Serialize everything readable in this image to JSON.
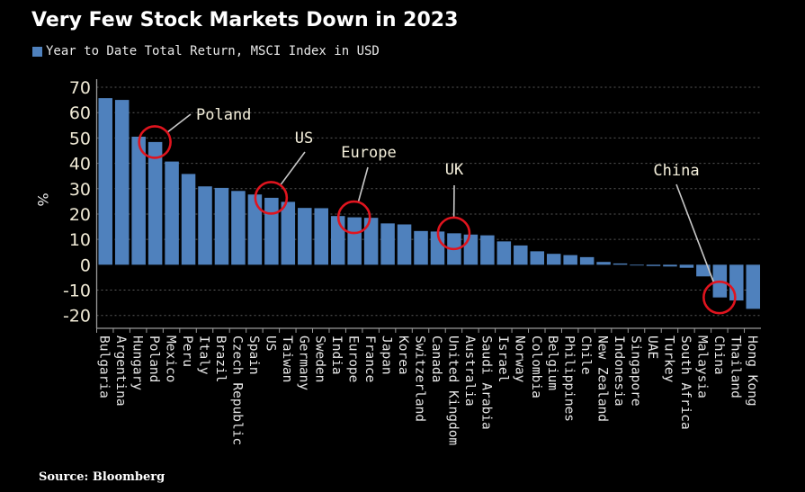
{
  "header": {
    "title": "Very Few Stock Markets Down in 2023",
    "legend_label": "Year to Date Total Return, MSCI Index in USD"
  },
  "footer": {
    "source": "Source: Bloomberg"
  },
  "colors": {
    "background": "#000000",
    "bar": "#4f81bd",
    "annotation_circle": "#e0141e",
    "annotation_line": "#c8c8c8",
    "gridline": "#5a5a5a",
    "axis": "#9a9a9a"
  },
  "chart_data": {
    "type": "bar",
    "title": "Very Few Stock Markets Down in 2023",
    "subtitle": "Year to Date Total Return, MSCI Index in USD",
    "legend": [
      {
        "label": "Year to Date Total Return, MSCI Index in USD",
        "color": "#4f81bd"
      }
    ],
    "legend_position": "top-left",
    "xlabel": "",
    "ylabel": "%",
    "ylim": [
      -20,
      70
    ],
    "yticks": [
      70,
      60,
      50,
      40,
      30,
      20,
      10,
      0,
      -10,
      -20
    ],
    "grid": true,
    "categories": [
      "Bulgaria",
      "Argentina",
      "Hungary",
      "Poland",
      "Mexico",
      "Peru",
      "Italy",
      "Brazil",
      "Czech Republic",
      "Spain",
      "US",
      "Taiwan",
      "Germany",
      "Sweden",
      "India",
      "Europe",
      "France",
      "Japan",
      "Korea",
      "Switzerland",
      "Canada",
      "United Kingdom",
      "Australia",
      "Saudi Arabia",
      "Israel",
      "Norway",
      "Colombia",
      "Belgium",
      "Philippines",
      "Chile",
      "New Zealand",
      "Indonesia",
      "Singapore",
      "UAE",
      "Turkey",
      "South Africa",
      "Malaysia",
      "China",
      "Thailand",
      "Hong Kong"
    ],
    "values": [
      65.7,
      65.0,
      50.5,
      48.4,
      40.7,
      35.8,
      30.9,
      30.3,
      29.1,
      27.7,
      26.4,
      24.8,
      22.4,
      22.3,
      19.2,
      18.7,
      18.5,
      16.3,
      15.9,
      13.3,
      13.1,
      12.4,
      11.9,
      11.6,
      9.2,
      7.6,
      5.3,
      4.3,
      3.8,
      3.0,
      1.1,
      0.5,
      -0.3,
      -0.5,
      -0.7,
      -1.2,
      -4.6,
      -12.9,
      -14.1,
      -17.4
    ],
    "annotations": [
      {
        "label": "Poland",
        "category": "Poland"
      },
      {
        "label": "US",
        "category": "US"
      },
      {
        "label": "Europe",
        "category": "Europe"
      },
      {
        "label": "UK",
        "category": "United Kingdom"
      },
      {
        "label": "China",
        "category": "China"
      }
    ]
  }
}
